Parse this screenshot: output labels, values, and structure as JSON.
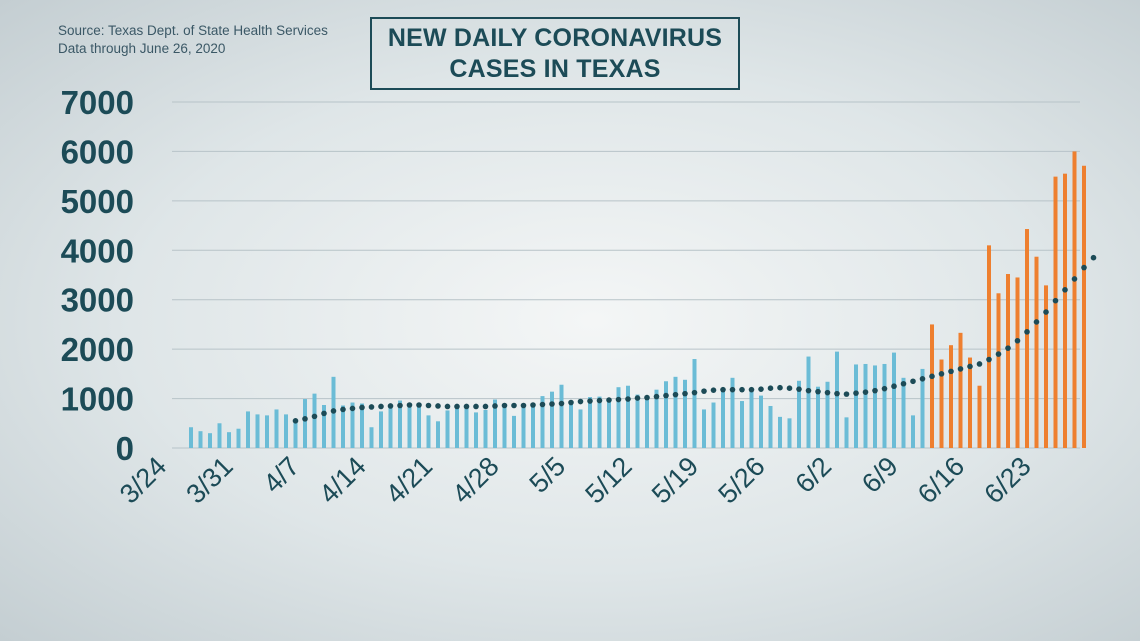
{
  "source": {
    "line1": "Source: Texas Dept. of State Health Services",
    "line2": "Data through  June 26, 2020"
  },
  "chart_data": {
    "type": "bar",
    "title_line1": "NEW DAILY CORONAVIRUS",
    "title_line2": "CASES IN TEXAS",
    "xlabel": "",
    "ylabel": "",
    "ylim": [
      0,
      7000
    ],
    "yticks": [
      0,
      1000,
      2000,
      3000,
      4000,
      5000,
      6000,
      7000
    ],
    "x_start": "3/24",
    "x_ticks": [
      "3/24",
      "3/31",
      "4/7",
      "4/14",
      "4/21",
      "4/28",
      "5/5",
      "5/12",
      "5/19",
      "5/26",
      "6/2",
      "6/9",
      "6/16",
      "6/23"
    ],
    "grid": true,
    "colors": {
      "normal": "#6bbcd6",
      "recent": "#ee7f2f",
      "trend": "#1c4b57"
    },
    "highlight_from": "6/12",
    "values": [
      0,
      0,
      420,
      340,
      300,
      500,
      320,
      390,
      740,
      680,
      660,
      780,
      680,
      580,
      990,
      1100,
      870,
      1440,
      860,
      920,
      900,
      420,
      740,
      820,
      960,
      900,
      900,
      660,
      540,
      760,
      880,
      880,
      720,
      770,
      980,
      850,
      650,
      860,
      830,
      1050,
      1140,
      1280,
      950,
      780,
      1030,
      1040,
      940,
      1230,
      1260,
      1080,
      1010,
      1180,
      1350,
      1440,
      1380,
      1800,
      780,
      920,
      1200,
      1420,
      950,
      1190,
      1060,
      850,
      630,
      600,
      1360,
      1850,
      1240,
      1340,
      1950,
      620,
      1690,
      1700,
      1670,
      1700,
      1930,
      1420,
      660,
      1600,
      2500,
      1790,
      2080,
      2330,
      1830,
      1260,
      4100,
      3130,
      3520,
      3450,
      4430,
      3870,
      3290,
      5490,
      5550,
      6000,
      5710
    ],
    "trend_start": "4/6",
    "trend": [
      550,
      590,
      640,
      700,
      750,
      780,
      800,
      820,
      830,
      840,
      850,
      860,
      870,
      870,
      860,
      850,
      840,
      840,
      840,
      840,
      840,
      850,
      860,
      860,
      860,
      870,
      880,
      890,
      900,
      920,
      940,
      950,
      960,
      970,
      980,
      990,
      1010,
      1020,
      1040,
      1060,
      1080,
      1100,
      1120,
      1150,
      1170,
      1180,
      1180,
      1180,
      1180,
      1190,
      1210,
      1220,
      1210,
      1190,
      1160,
      1140,
      1120,
      1100,
      1090,
      1110,
      1130,
      1160,
      1200,
      1250,
      1300,
      1350,
      1400,
      1450,
      1500,
      1550,
      1600,
      1650,
      1700,
      1790,
      1900,
      2020,
      2170,
      2350,
      2550,
      2750,
      2980,
      3200,
      3420,
      3650,
      3850
    ]
  }
}
